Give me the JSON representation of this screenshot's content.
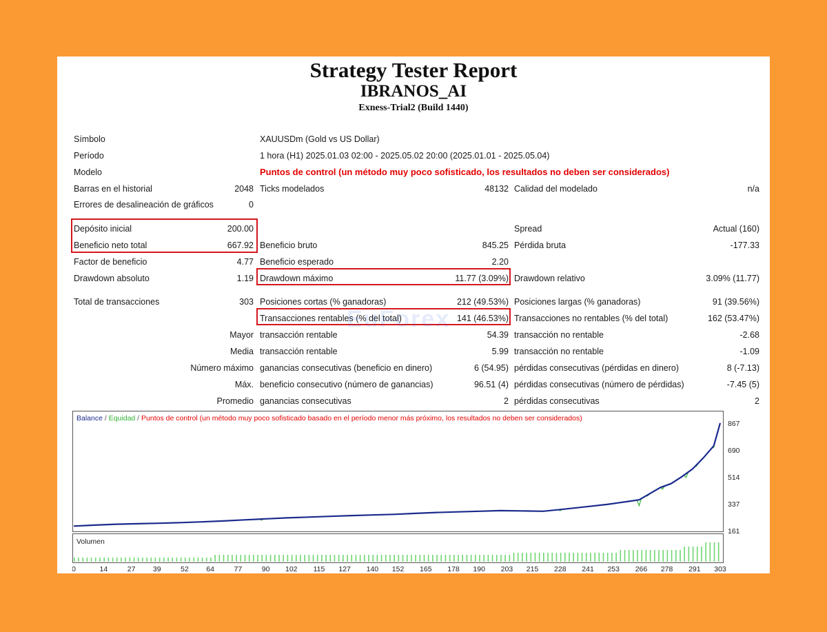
{
  "report": {
    "title": "Strategy Tester Report",
    "ea_name": "IBRANOS_AI",
    "server": "Exness-Trial2 (Build 1440)"
  },
  "info": {
    "symbol_label": "Símbolo",
    "symbol_value": "XAUUSDm (Gold vs US Dollar)",
    "period_label": "Período",
    "period_value": "1 hora (H1) 2025.01.03 02:00 - 2025.05.02 20:00 (2025.01.01 - 2025.05.04)",
    "model_label": "Modelo",
    "model_value": "Puntos de control (un método muy poco sofisticado, los resultados no deben ser considerados)",
    "bars_label": "Barras en el historial",
    "bars_value": "2048",
    "ticks_label": "Ticks modelados",
    "ticks_value": "48132",
    "quality_label": "Calidad del modelado",
    "quality_value": "n/a",
    "errors_label": "Errores de desalineación de gráficos",
    "errors_value": "0"
  },
  "results": {
    "deposit_label": "Depósito inicial",
    "deposit_value": "200.00",
    "spread_label": "Spread",
    "spread_value": "Actual (160)",
    "net_profit_label": "Beneficio neto total",
    "net_profit_value": "667.92",
    "gross_profit_label": "Beneficio bruto",
    "gross_profit_value": "845.25",
    "gross_loss_label": "Pérdida bruta",
    "gross_loss_value": "-177.33",
    "profit_factor_label": "Factor de beneficio",
    "profit_factor_value": "4.77",
    "expected_payoff_label": "Beneficio esperado",
    "expected_payoff_value": "2.20",
    "abs_dd_label": "Drawdown absoluto",
    "abs_dd_value": "1.19",
    "max_dd_label": "Drawdown máximo",
    "max_dd_value": "11.77 (3.09%)",
    "rel_dd_label": "Drawdown relativo",
    "rel_dd_value": "3.09% (11.77)",
    "total_trades_label": "Total de transacciones",
    "total_trades_value": "303",
    "short_label": "Posiciones cortas (% ganadoras)",
    "short_value": "212 (49.53%)",
    "long_label": "Posiciones largas (% ganadoras)",
    "long_value": "91 (39.56%)",
    "profit_trades_label": "Transacciones rentables (% del total)",
    "profit_trades_value": "141 (46.53%)",
    "loss_trades_label": "Transacciones no rentables (% del total)",
    "loss_trades_value": "162 (53.47%)",
    "largest_label": "Mayor",
    "largest_profit_label": "transacción rentable",
    "largest_profit_value": "54.39",
    "largest_loss_label": "transacción no rentable",
    "largest_loss_value": "-2.68",
    "average_label": "Media",
    "avg_profit_label": "transacción rentable",
    "avg_profit_value": "5.99",
    "avg_loss_label": "transacción no rentable",
    "avg_loss_value": "-1.09",
    "max_label": "Número máximo",
    "max_wins_label": "ganancias consecutivas (beneficio en dinero)",
    "max_wins_value": "6 (54.95)",
    "max_losses_label": "pérdidas consecutivas (pérdidas en dinero)",
    "max_losses_value": "8 (-7.13)",
    "maximal_label": "Máx.",
    "maximal_profit_label": "beneficio consecutivo (número de ganancias)",
    "maximal_profit_value": "96.51 (4)",
    "maximal_loss_label": "pérdidas consecutivas (número de pérdidas)",
    "maximal_loss_value": "-7.45 (5)",
    "avg_consec_label": "Promedio",
    "avg_wins_label": "ganancias consecutivas",
    "avg_wins_value": "2",
    "avg_losses_label": "pérdidas consecutivas",
    "avg_losses_value": "2"
  },
  "watermark": "EuForex",
  "colors": {
    "balance": "#1a2a8c",
    "equity": "#34b234",
    "model_note": "#e30000",
    "volume": "#6fd66f",
    "highlight": "#d4161c"
  },
  "chart_data": {
    "type": "line",
    "legend": {
      "balance": "Balance",
      "sep1": " / ",
      "equity": "Equidad",
      "sep2": " / ",
      "note": "Puntos de control (un método muy poco sofisticado basado en el período menor más próximo, los resultados no deben ser considerados)"
    },
    "volume_label": "Volumen",
    "y_ticks": [
      "867",
      "690",
      "514",
      "337",
      "161"
    ],
    "x_ticks": [
      "0",
      "14",
      "27",
      "39",
      "52",
      "64",
      "77",
      "90",
      "102",
      "115",
      "127",
      "140",
      "152",
      "165",
      "178",
      "190",
      "203",
      "215",
      "228",
      "241",
      "253",
      "266",
      "278",
      "291",
      "303"
    ],
    "ylim": [
      161,
      867
    ],
    "xlim": [
      0,
      303
    ],
    "balance": [
      [
        0,
        200
      ],
      [
        10,
        206
      ],
      [
        20,
        212
      ],
      [
        30,
        215
      ],
      [
        40,
        218
      ],
      [
        50,
        222
      ],
      [
        60,
        227
      ],
      [
        70,
        233
      ],
      [
        80,
        240
      ],
      [
        90,
        247
      ],
      [
        100,
        253
      ],
      [
        110,
        258
      ],
      [
        120,
        263
      ],
      [
        130,
        268
      ],
      [
        140,
        272
      ],
      [
        150,
        276
      ],
      [
        160,
        282
      ],
      [
        170,
        288
      ],
      [
        180,
        292
      ],
      [
        190,
        296
      ],
      [
        200,
        300
      ],
      [
        210,
        298
      ],
      [
        220,
        296
      ],
      [
        230,
        310
      ],
      [
        240,
        325
      ],
      [
        250,
        340
      ],
      [
        255,
        350
      ],
      [
        260,
        360
      ],
      [
        265,
        370
      ],
      [
        270,
        410
      ],
      [
        275,
        450
      ],
      [
        280,
        475
      ],
      [
        285,
        520
      ],
      [
        290,
        570
      ],
      [
        295,
        640
      ],
      [
        300,
        720
      ],
      [
        303,
        868
      ]
    ],
    "equity_dips": [
      [
        88,
        238
      ],
      [
        128,
        265
      ],
      [
        228,
        300
      ],
      [
        265,
        332
      ],
      [
        269,
        395
      ],
      [
        276,
        440
      ],
      [
        287,
        515
      ],
      [
        292,
        590
      ],
      [
        300,
        710
      ]
    ]
  }
}
